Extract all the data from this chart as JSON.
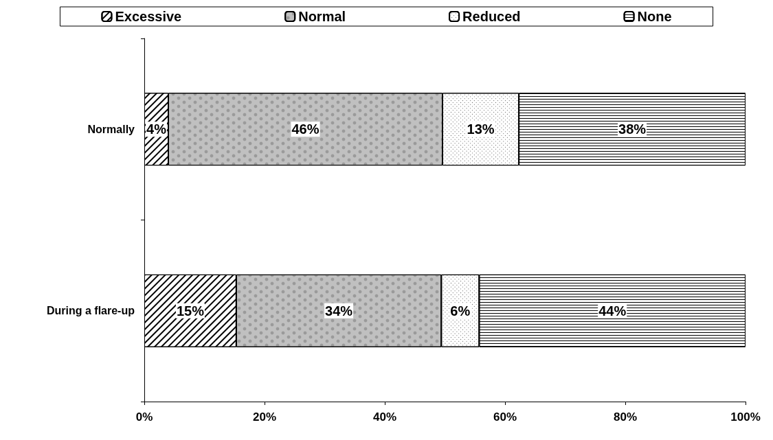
{
  "chart_data": {
    "type": "bar",
    "orientation": "horizontal",
    "stacked": true,
    "categories": [
      "Normally",
      "During a flare-up"
    ],
    "series": [
      {
        "name": "Excessive",
        "color": "#ffffff",
        "values": [
          4.0,
          15.3
        ],
        "value_labels": [
          "4%",
          "15%"
        ]
      },
      {
        "name": "Normal",
        "color": "#c0c0c0",
        "values": [
          45.6,
          34.1
        ],
        "value_labels": [
          "46%",
          "34%"
        ]
      },
      {
        "name": "Reduced",
        "color": "#ffffff",
        "values": [
          12.7,
          6.3
        ],
        "value_labels": [
          "13%",
          "6%"
        ]
      },
      {
        "name": "None",
        "color": "#ffffff",
        "values": [
          37.7,
          44.3
        ],
        "value_labels": [
          "38%",
          "44%"
        ]
      }
    ],
    "xlim": [
      0,
      100
    ],
    "xticks": [
      {
        "value": 0,
        "label": "0%"
      },
      {
        "value": 20,
        "label": "20%"
      },
      {
        "value": 40,
        "label": "40%"
      },
      {
        "value": 60,
        "label": "60%"
      },
      {
        "value": 80,
        "label": "80%"
      },
      {
        "value": 100,
        "label": "100%"
      }
    ],
    "grid": false,
    "legend": "top"
  }
}
